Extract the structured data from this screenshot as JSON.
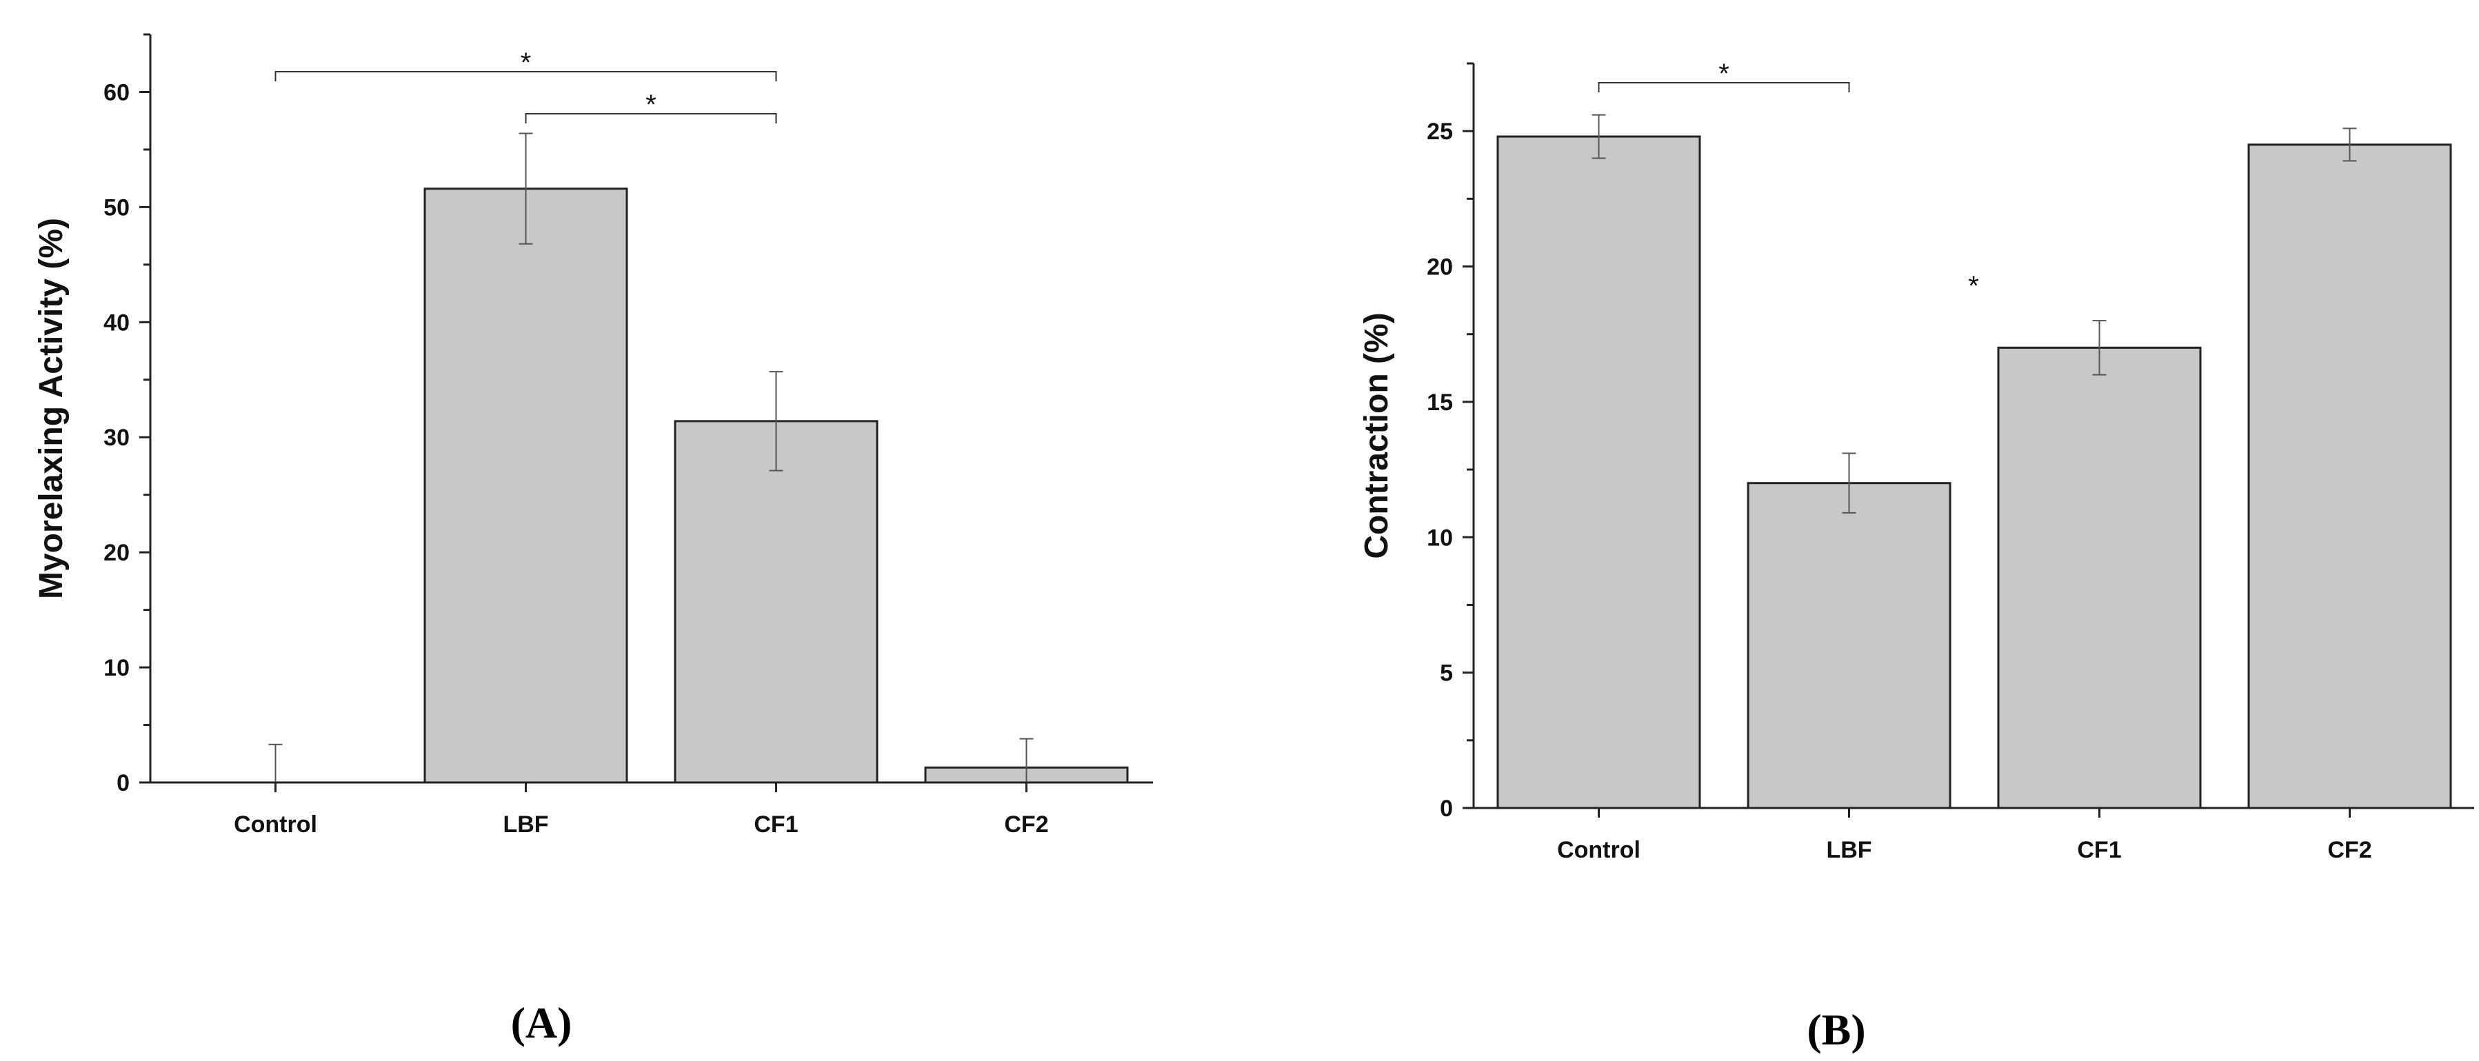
{
  "chart_data": [
    {
      "type": "bar",
      "panel_label": "(A)",
      "panel_letter": "A",
      "categories": [
        "Control",
        "LBF",
        "CF1",
        "CF2"
      ],
      "values": [
        0,
        51.6,
        31.4,
        1.3
      ],
      "errors": [
        3.3,
        4.8,
        4.3,
        2.5
      ],
      "ylabel": "Myorelaxing Activity (%)",
      "xlabel": "",
      "ylim": [
        0,
        65
      ],
      "yticks": [
        0,
        10,
        20,
        30,
        40,
        50,
        60
      ],
      "bar_color": "#c8c8c8",
      "significance": [
        {
          "from": "Control",
          "to": "CF1",
          "label": "*"
        },
        {
          "from": "LBF",
          "to": "CF1",
          "label": "*"
        }
      ]
    },
    {
      "type": "bar",
      "panel_label": "(B)",
      "panel_letter": "B",
      "categories": [
        "Control",
        "LBF",
        "CF1",
        "CF2"
      ],
      "values": [
        24.8,
        12.0,
        17.0,
        24.5
      ],
      "errors": [
        0.8,
        1.1,
        1.0,
        0.6
      ],
      "ylabel": "Contraction (%)",
      "xlabel": "",
      "ylim": [
        0,
        27.5
      ],
      "yticks": [
        0,
        5,
        10,
        15,
        20,
        25
      ],
      "bar_color": "#c8c8c8",
      "significance": [
        {
          "from": "Control",
          "to": "LBF",
          "label": "*"
        }
      ],
      "extra_star": "*"
    }
  ]
}
